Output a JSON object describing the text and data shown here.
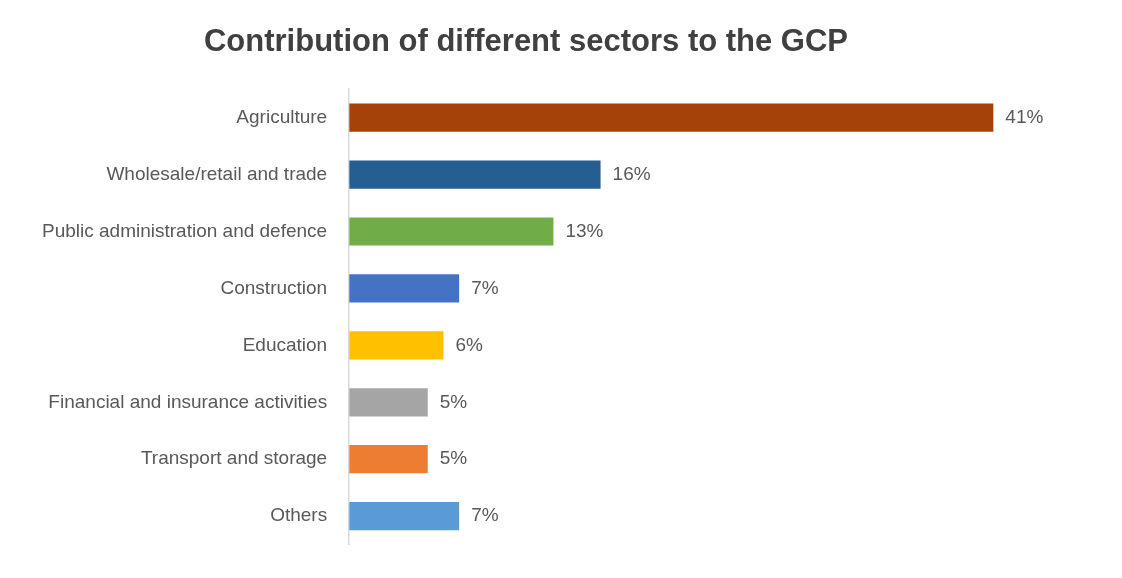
{
  "chart_data": {
    "type": "bar",
    "orientation": "horizontal",
    "title": "Contribution of different sectors to the GCP",
    "categories": [
      "Agriculture",
      "Wholesale/retail and trade",
      "Public administration and defence",
      "Construction",
      "Education",
      "Financial and insurance activities",
      "Transport and storage",
      "Others"
    ],
    "values": [
      41,
      16,
      13,
      7,
      6,
      5,
      5,
      7
    ],
    "colors": [
      "#a5420a",
      "#255e91",
      "#70ad47",
      "#4472c4",
      "#ffc000",
      "#a5a5a5",
      "#ed7d31",
      "#5b9bd5"
    ],
    "value_labels": [
      "41%",
      "16%",
      "13%",
      "7%",
      "6%",
      "5%",
      "5%",
      "7%"
    ],
    "legend": false
  }
}
